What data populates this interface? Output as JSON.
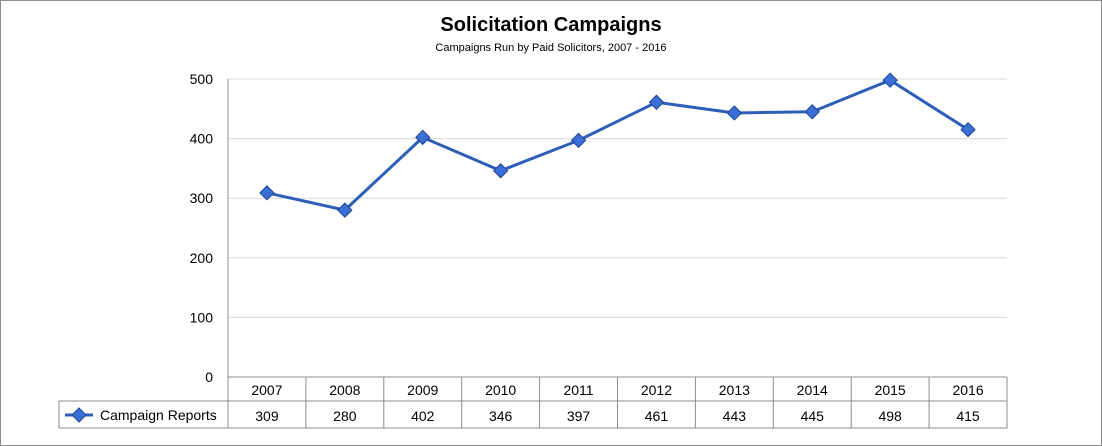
{
  "chart_data": {
    "type": "line",
    "title": "Solicitation Campaigns",
    "subtitle": "Campaigns Run by Paid Solicitors, 2007 - 2016",
    "categories": [
      "2007",
      "2008",
      "2009",
      "2010",
      "2011",
      "2012",
      "2013",
      "2014",
      "2015",
      "2016"
    ],
    "series": [
      {
        "name": "Campaign Reports",
        "values": [
          309,
          280,
          402,
          346,
          397,
          461,
          443,
          445,
          498,
          415
        ]
      }
    ],
    "ylim": [
      0,
      500
    ],
    "yticks": [
      "0",
      "100",
      "200",
      "300",
      "400",
      "500"
    ],
    "grid": true,
    "legend": "data-table-left",
    "data_table": true
  },
  "colors": {
    "line": "#2e5fb8",
    "marker": "#3a6fd8",
    "marker_dark": "#1f4591",
    "grid": "#d9d9d9",
    "table_border": "#8c8c8c"
  }
}
